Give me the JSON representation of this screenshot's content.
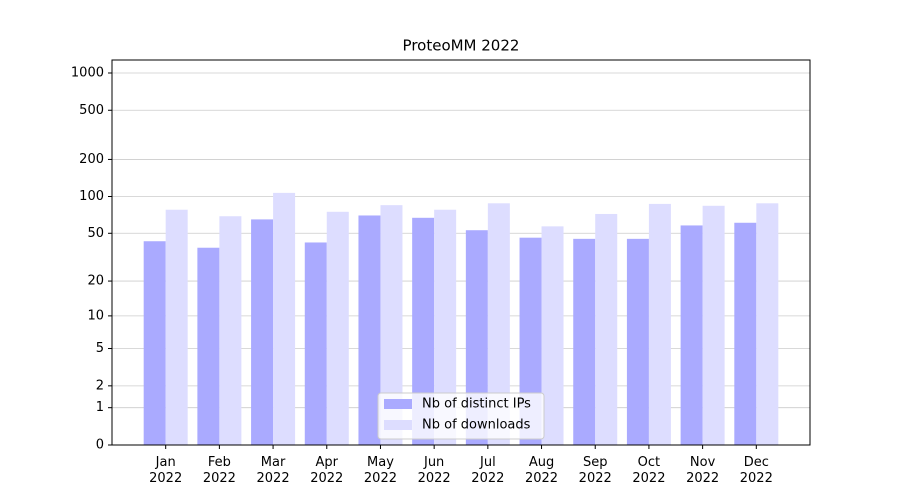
{
  "chart_data": {
    "type": "bar",
    "title": "ProteoMM 2022",
    "categories": [
      "Jan\n2022",
      "Feb\n2022",
      "Mar\n2022",
      "Apr\n2022",
      "May\n2022",
      "Jun\n2022",
      "Jul\n2022",
      "Aug\n2022",
      "Sep\n2022",
      "Oct\n2022",
      "Nov\n2022",
      "Dec\n2022"
    ],
    "series": [
      {
        "name": "Nb of distinct IPs",
        "color": "#aaaaff",
        "values": [
          43,
          38,
          65,
          42,
          70,
          67,
          53,
          46,
          45,
          45,
          58,
          61
        ]
      },
      {
        "name": "Nb of downloads",
        "color": "#ddddff",
        "values": [
          78,
          69,
          107,
          75,
          85,
          78,
          88,
          57,
          72,
          87,
          84,
          88
        ]
      }
    ],
    "ylim": [
      0,
      1273
    ],
    "yticks": [
      0,
      1,
      2,
      5,
      10,
      20,
      50,
      100,
      200,
      500,
      1000
    ],
    "yscale": "log1p",
    "grid": true,
    "legend": "lower center"
  }
}
